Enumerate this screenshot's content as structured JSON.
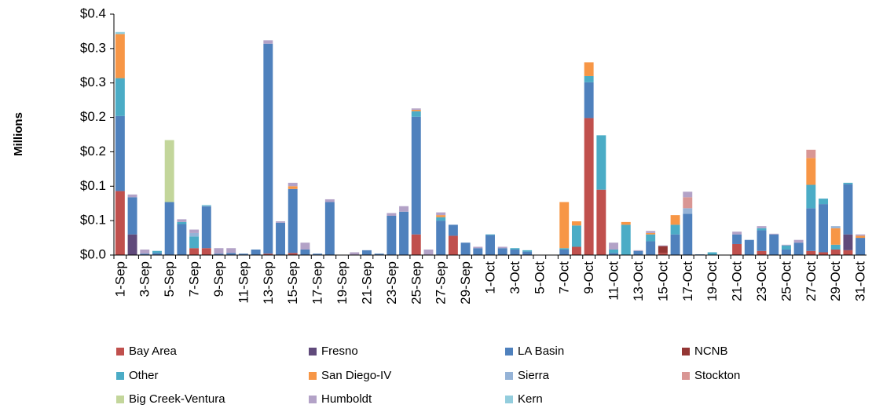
{
  "chart_data": {
    "type": "stacked_bar",
    "y_label": "Millions",
    "categories": [
      "1-Sep",
      null,
      "3-Sep",
      null,
      "5-Sep",
      null,
      "7-Sep",
      null,
      "9-Sep",
      null,
      "11-Sep",
      null,
      "13-Sep",
      null,
      "15-Sep",
      null,
      "17-Sep",
      null,
      "19-Sep",
      null,
      "21-Sep",
      null,
      "23-Sep",
      null,
      "25-Sep",
      null,
      "27-Sep",
      null,
      "29-Sep",
      null,
      "1-Oct",
      null,
      "3-Oct",
      null,
      "5-Oct",
      null,
      "7-Oct",
      null,
      "9-Oct",
      null,
      "11-Oct",
      null,
      "13-Oct",
      null,
      "15-Oct",
      null,
      "17-Oct",
      null,
      "19-Oct",
      null,
      "21-Oct",
      null,
      "23-Oct",
      null,
      "25-Oct",
      null,
      "27-Oct",
      null,
      "29-Oct",
      null,
      "31-Oct"
    ],
    "ylim": [
      0,
      0.35
    ],
    "yticks": [
      {
        "value": 0,
        "label": "$0.0"
      },
      {
        "value": 0.05,
        "label": "$0.1"
      },
      {
        "value": 0.1,
        "label": "$0.1"
      },
      {
        "value": 0.15,
        "label": "$0.2"
      },
      {
        "value": 0.2,
        "label": "$0.2"
      },
      {
        "value": 0.25,
        "label": "$0.3"
      },
      {
        "value": 0.3,
        "label": "$0.3"
      },
      {
        "value": 0.35,
        "label": "$0.4"
      }
    ],
    "legend": "bottom",
    "series": [
      {
        "name": "Bay Area",
        "color": "#C0504D",
        "values": [
          0.093,
          0,
          0,
          0,
          0,
          0,
          0.01,
          0.01,
          0,
          0,
          0,
          0,
          0.002,
          0,
          0.003,
          0,
          0,
          0,
          0,
          0,
          0,
          0,
          0,
          0,
          0.03,
          0,
          0,
          0.028,
          0,
          0,
          0,
          0,
          0,
          0,
          0,
          0,
          0,
          0.012,
          0.199,
          0.095,
          0,
          0,
          0,
          0,
          0.003,
          0,
          0,
          0,
          0,
          0,
          0.016,
          0,
          0.006,
          0,
          0,
          0,
          0.006,
          0.004,
          0.008,
          0.007,
          0
        ]
      },
      {
        "name": "Fresno",
        "color": "#604A7B",
        "values": [
          0,
          0.03,
          0,
          0,
          0,
          0,
          0,
          0,
          0,
          0,
          0,
          0,
          0,
          0,
          0,
          0,
          0,
          0,
          0,
          0,
          0,
          0,
          0,
          0,
          0,
          0,
          0,
          0,
          0,
          0,
          0,
          0,
          0,
          0,
          0,
          0,
          0,
          0,
          0,
          0,
          0,
          0,
          0,
          0,
          0,
          0,
          0,
          0,
          0,
          0,
          0,
          0,
          0,
          0,
          0,
          0,
          0,
          0,
          0,
          0.023,
          0
        ]
      },
      {
        "name": "LA Basin",
        "color": "#4F81BD",
        "values": [
          0.109,
          0.054,
          0.002,
          0.003,
          0.077,
          0.045,
          0,
          0.061,
          0.002,
          0.003,
          0.002,
          0.008,
          0.305,
          0.047,
          0.093,
          0.008,
          0.002,
          0.077,
          0,
          0,
          0.007,
          0.002,
          0.057,
          0.063,
          0.171,
          0,
          0.05,
          0.016,
          0.018,
          0.01,
          0.029,
          0.01,
          0.008,
          0.005,
          0,
          0,
          0.008,
          0,
          0.052,
          0,
          0.003,
          0,
          0.006,
          0.02,
          0,
          0.03,
          0.06,
          0.001,
          0,
          0,
          0.014,
          0.022,
          0.03,
          0.03,
          0.008,
          0.018,
          0.062,
          0.07,
          0,
          0.073,
          0.025
        ]
      },
      {
        "name": "NCNB",
        "color": "#943634",
        "values": [
          0,
          0,
          0,
          0,
          0,
          0,
          0,
          0,
          0,
          0,
          0,
          0,
          0,
          0,
          0,
          0,
          0,
          0,
          0,
          0,
          0,
          0,
          0,
          0,
          0,
          0,
          0,
          0,
          0,
          0,
          0,
          0,
          0,
          0,
          0,
          0,
          0,
          0,
          0,
          0,
          0,
          0,
          0,
          0,
          0.01,
          0,
          0,
          0,
          0,
          0,
          0,
          0,
          0,
          0,
          0,
          0,
          0,
          0,
          0,
          0,
          0
        ]
      },
      {
        "name": "Other",
        "color": "#4BACC6",
        "values": [
          0.055,
          0,
          0,
          0.003,
          0,
          0.003,
          0.017,
          0,
          0,
          0,
          0,
          0,
          0,
          0,
          0,
          0,
          0,
          0,
          0,
          0,
          0,
          0,
          0,
          0,
          0.008,
          0,
          0.005,
          0,
          0,
          0,
          0.001,
          0,
          0.002,
          0.002,
          0,
          0,
          0.002,
          0.031,
          0.009,
          0.079,
          0.005,
          0.044,
          0,
          0.01,
          0,
          0.014,
          0,
          0,
          0.004,
          0,
          0,
          0,
          0.003,
          0,
          0.006,
          0,
          0.034,
          0.008,
          0.007,
          0.002,
          0
        ]
      },
      {
        "name": "San Diego-IV",
        "color": "#F79646",
        "values": [
          0.064,
          0,
          0,
          0,
          0,
          0,
          0,
          0,
          0,
          0,
          0,
          0,
          0,
          0,
          0.004,
          0,
          0,
          0,
          0,
          0,
          0,
          0,
          0,
          0,
          0.002,
          0,
          0.003,
          0,
          0,
          0,
          0,
          0,
          0,
          0,
          0,
          0,
          0.067,
          0.006,
          0.02,
          0,
          0,
          0.004,
          0,
          0.002,
          0,
          0.014,
          0,
          0,
          0,
          0,
          0,
          0,
          0,
          0,
          0,
          0,
          0.039,
          0,
          0.024,
          0,
          0.003
        ]
      },
      {
        "name": "Sierra",
        "color": "#95B3D7",
        "values": [
          0,
          0,
          0,
          0,
          0,
          0,
          0.005,
          0,
          0,
          0,
          0,
          0,
          0,
          0,
          0,
          0,
          0,
          0,
          0,
          0,
          0,
          0,
          0,
          0,
          0,
          0,
          0,
          0,
          0,
          0,
          0,
          0,
          0,
          0,
          0,
          0,
          0,
          0,
          0,
          0,
          0,
          0,
          0,
          0,
          0,
          0,
          0.008,
          0,
          0,
          0,
          0,
          0,
          0,
          0,
          0,
          0,
          0,
          0,
          0.003,
          0,
          0
        ]
      },
      {
        "name": "Stockton",
        "color": "#D99694",
        "values": [
          0,
          0,
          0,
          0,
          0,
          0,
          0,
          0,
          0,
          0,
          0,
          0,
          0,
          0,
          0,
          0,
          0,
          0,
          0,
          0,
          0,
          0,
          0,
          0,
          0,
          0,
          0,
          0,
          0,
          0,
          0,
          0,
          0,
          0,
          0,
          0,
          0,
          0,
          0,
          0,
          0,
          0,
          0,
          0,
          0,
          0,
          0.016,
          0,
          0,
          0,
          0,
          0,
          0,
          0,
          0,
          0,
          0.012,
          0,
          0,
          0,
          0
        ]
      },
      {
        "name": "Big Creek-Ventura",
        "color": "#C3D69B",
        "values": [
          0,
          0,
          0,
          0,
          0.09,
          0,
          0,
          0,
          0,
          0,
          0,
          0,
          0,
          0,
          0,
          0,
          0,
          0,
          0,
          0,
          0,
          0,
          0,
          0,
          0,
          0,
          0,
          0,
          0,
          0,
          0,
          0,
          0,
          0,
          0,
          0,
          0,
          0,
          0,
          0,
          0,
          0,
          0,
          0,
          0,
          0,
          0,
          0,
          0,
          0,
          0,
          0,
          0,
          0,
          0,
          0,
          0,
          0,
          0,
          0,
          0
        ]
      },
      {
        "name": "Humboldt",
        "color": "#B3A2C7",
        "values": [
          0,
          0.004,
          0.006,
          0,
          0,
          0.004,
          0.005,
          0,
          0.008,
          0.007,
          0,
          0,
          0.005,
          0.002,
          0.005,
          0.01,
          0,
          0.004,
          0,
          0.004,
          0,
          0,
          0.004,
          0.008,
          0.002,
          0.008,
          0.004,
          0,
          0,
          0.002,
          0,
          0.002,
          0,
          0,
          0,
          0,
          0,
          0,
          0,
          0,
          0.01,
          0,
          0.001,
          0.003,
          0.001,
          0,
          0.008,
          0,
          0,
          0,
          0.004,
          0,
          0.003,
          0.001,
          0.001,
          0.004,
          0,
          0,
          0,
          0,
          0.002
        ]
      },
      {
        "name": "Kern",
        "color": "#93CDDD",
        "values": [
          0.003,
          0,
          0,
          0,
          0,
          0,
          0,
          0.002,
          0,
          0,
          0,
          0,
          0,
          0,
          0,
          0,
          0,
          0,
          0,
          0,
          0,
          0,
          0,
          0,
          0,
          0,
          0,
          0,
          0,
          0,
          0,
          0,
          0,
          0,
          0,
          0,
          0,
          0,
          0,
          0,
          0,
          0,
          0,
          0,
          0,
          0,
          0,
          0,
          0,
          0,
          0,
          0,
          0,
          0,
          0,
          0,
          0,
          0,
          0,
          0,
          0
        ]
      }
    ]
  }
}
